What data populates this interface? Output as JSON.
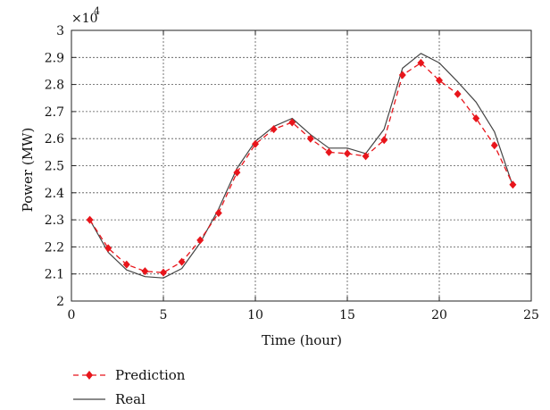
{
  "chart_data": {
    "type": "line",
    "title": "",
    "xlabel": "Time (hour)",
    "ylabel": "Power (MW)",
    "y_multiplier": {
      "base": "×10",
      "exponent": "4"
    },
    "xlim": [
      0,
      25
    ],
    "ylim": [
      2,
      3
    ],
    "xticks": [
      0,
      5,
      10,
      15,
      20,
      25
    ],
    "yticks": [
      2,
      2.1,
      2.2,
      2.3,
      2.4,
      2.5,
      2.6,
      2.7,
      2.8,
      2.9,
      3
    ],
    "x_tick_labels": [
      "0",
      "5",
      "10",
      "15",
      "20",
      "25"
    ],
    "y_tick_labels": [
      "2",
      "2.1",
      "2.2",
      "2.3",
      "2.4",
      "2.5",
      "2.6",
      "2.7",
      "2.8",
      "2.9",
      "3"
    ],
    "grid": true,
    "legend_position": "below",
    "x": [
      1,
      2,
      3,
      4,
      5,
      6,
      7,
      8,
      9,
      10,
      11,
      12,
      13,
      14,
      15,
      16,
      17,
      18,
      19,
      20,
      21,
      22,
      23,
      24
    ],
    "series": [
      {
        "name": "Prediction",
        "color": "#e8151b",
        "line_style": "dashed",
        "marker": "diamond",
        "values": [
          2.3,
          2.195,
          2.135,
          2.11,
          2.105,
          2.145,
          2.225,
          2.325,
          2.475,
          2.58,
          2.635,
          2.66,
          2.6,
          2.55,
          2.545,
          2.535,
          2.595,
          2.835,
          2.88,
          2.815,
          2.765,
          2.675,
          2.575,
          2.43
        ]
      },
      {
        "name": "Real",
        "color": "#444444",
        "line_style": "solid",
        "marker": "none",
        "values": [
          2.3,
          2.18,
          2.115,
          2.09,
          2.085,
          2.12,
          2.215,
          2.34,
          2.49,
          2.59,
          2.645,
          2.675,
          2.615,
          2.565,
          2.565,
          2.545,
          2.635,
          2.86,
          2.915,
          2.88,
          2.81,
          2.735,
          2.625,
          2.425
        ]
      }
    ]
  }
}
